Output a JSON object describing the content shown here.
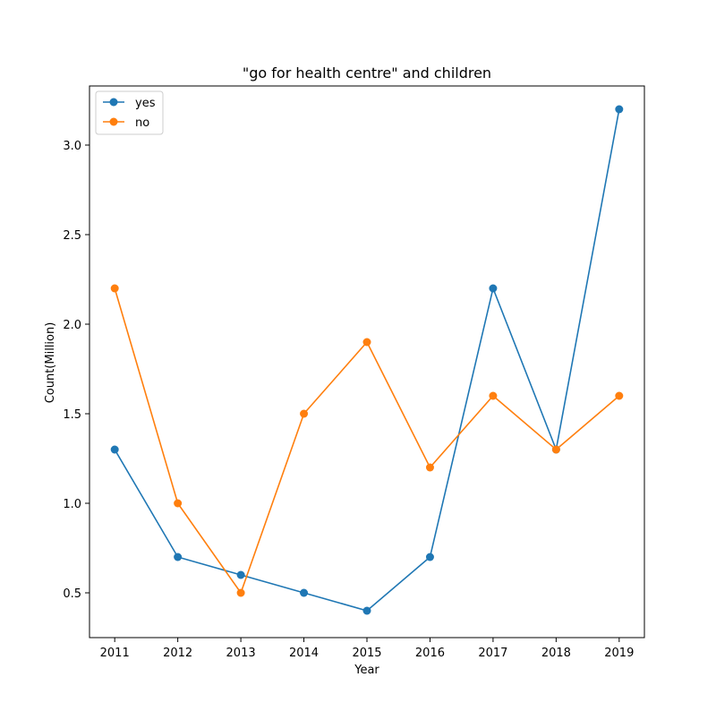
{
  "chart_data": {
    "type": "line",
    "title": "\"go for health centre\" and children",
    "xlabel": "Year",
    "ylabel": "Count(Million)",
    "x": [
      2011,
      2012,
      2013,
      2014,
      2015,
      2016,
      2017,
      2018,
      2019
    ],
    "x_tick_labels": [
      "2011",
      "2012",
      "2013",
      "2014",
      "2015",
      "2016",
      "2017",
      "2018",
      "2019"
    ],
    "ylim": [
      0.25,
      3.33
    ],
    "y_ticks": [
      0.5,
      1.0,
      1.5,
      2.0,
      2.5,
      3.0
    ],
    "y_tick_labels": [
      "0.5",
      "1.0",
      "1.5",
      "2.0",
      "2.5",
      "3.0"
    ],
    "grid": false,
    "legend_position": "top-left",
    "series": [
      {
        "name": "yes",
        "color": "#1f77b4",
        "values": [
          1.3,
          0.7,
          0.6,
          0.5,
          0.4,
          0.7,
          2.2,
          1.3,
          3.2
        ]
      },
      {
        "name": "no",
        "color": "#ff7f0e",
        "values": [
          2.2,
          1.0,
          0.5,
          1.5,
          1.9,
          1.2,
          1.6,
          1.3,
          1.6
        ]
      }
    ]
  }
}
